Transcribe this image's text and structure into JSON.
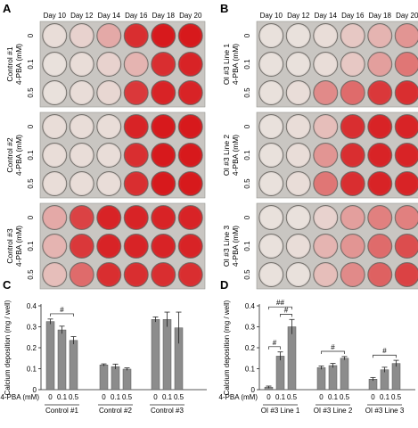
{
  "panels": {
    "A": {
      "letter": "A",
      "day_labels": [
        "Day 10",
        "Day 12",
        "Day 14",
        "Day 16",
        "Day 18",
        "Day 20"
      ],
      "groups": [
        {
          "label_line1": "Control #1",
          "label_line2": "4-PBA (mM)",
          "rows": [
            {
              "dose": "0",
              "stain": [
                0.05,
                0.1,
                0.3,
                0.9,
                1.0,
                1.0
              ]
            },
            {
              "dose": "0.1",
              "stain": [
                0.03,
                0.05,
                0.1,
                0.25,
                0.9,
                0.95
              ]
            },
            {
              "dose": "0.5",
              "stain": [
                0.03,
                0.05,
                0.08,
                0.85,
                0.95,
                0.95
              ]
            }
          ]
        },
        {
          "label_line1": "Control #2",
          "label_line2": "4-PBA (mM)",
          "rows": [
            {
              "dose": "0",
              "stain": [
                0.05,
                0.05,
                0.05,
                0.95,
                1.0,
                1.0
              ]
            },
            {
              "dose": "0.1",
              "stain": [
                0.05,
                0.05,
                0.05,
                0.9,
                1.0,
                1.0
              ]
            },
            {
              "dose": "0.5",
              "stain": [
                0.05,
                0.05,
                0.05,
                0.9,
                1.0,
                1.0
              ]
            }
          ]
        },
        {
          "label_line1": "Control #3",
          "label_line2": "4-PBA (mM)",
          "rows": [
            {
              "dose": "0",
              "stain": [
                0.3,
                0.8,
                0.95,
                0.95,
                0.95,
                0.95
              ]
            },
            {
              "dose": "0.1",
              "stain": [
                0.25,
                0.85,
                0.95,
                0.95,
                0.95,
                0.95
              ]
            },
            {
              "dose": "0.5",
              "stain": [
                0.2,
                0.6,
                0.9,
                0.9,
                0.9,
                0.9
              ]
            }
          ]
        }
      ]
    },
    "B": {
      "letter": "B",
      "day_labels": [
        "Day 10",
        "Day 12",
        "Day 14",
        "Day 16",
        "Day 18",
        "Day 20"
      ],
      "groups": [
        {
          "label_line1": "OI #3 Line 1",
          "label_line2": "4-PBA (mM)",
          "rows": [
            {
              "dose": "0",
              "stain": [
                0.03,
                0.03,
                0.05,
                0.15,
                0.25,
                0.4
              ]
            },
            {
              "dose": "0.1",
              "stain": [
                0.03,
                0.03,
                0.05,
                0.15,
                0.35,
                0.55
              ]
            },
            {
              "dose": "0.5",
              "stain": [
                0.03,
                0.05,
                0.45,
                0.6,
                0.85,
                0.9
              ]
            }
          ]
        },
        {
          "label_line1": "OI #3 Line 2",
          "label_line2": "4-PBA (mM)",
          "rows": [
            {
              "dose": "0",
              "stain": [
                0.03,
                0.05,
                0.2,
                0.9,
                0.95,
                0.95
              ]
            },
            {
              "dose": "0.1",
              "stain": [
                0.03,
                0.05,
                0.4,
                0.9,
                0.95,
                0.95
              ]
            },
            {
              "dose": "0.5",
              "stain": [
                0.03,
                0.05,
                0.55,
                0.9,
                0.95,
                0.95
              ]
            }
          ]
        },
        {
          "label_line1": "OI #3 Line 3",
          "label_line2": "4-PBA (mM)",
          "rows": [
            {
              "dose": "0",
              "stain": [
                0.03,
                0.03,
                0.1,
                0.35,
                0.5,
                0.5
              ]
            },
            {
              "dose": "0.1",
              "stain": [
                0.03,
                0.05,
                0.25,
                0.4,
                0.6,
                0.75
              ]
            },
            {
              "dose": "0.5",
              "stain": [
                0.03,
                0.03,
                0.2,
                0.45,
                0.65,
                0.8
              ]
            }
          ]
        }
      ]
    },
    "C": {
      "letter": "C"
    },
    "D": {
      "letter": "D"
    }
  },
  "colors": {
    "stain_red": "#d7191c",
    "bar_gray": "#8c8c8c",
    "axis": "#222222"
  },
  "chart_data": [
    {
      "panel": "C",
      "type": "bar",
      "ylabel": "Calcium deposition (mg / well)",
      "ylim": [
        0,
        0.4
      ],
      "yticks": [
        "0",
        "0.1",
        "0.2",
        "0.3",
        "0.4"
      ],
      "dose_axis_label": "4-PBA (mM)",
      "categories": [
        "0",
        "0.1",
        "0.5"
      ],
      "groups": [
        {
          "name": "Control #1",
          "values": [
            0.325,
            0.285,
            0.235
          ],
          "errors": [
            0.012,
            0.018,
            0.018
          ]
        },
        {
          "name": "Control #2",
          "values": [
            0.118,
            0.11,
            0.098
          ],
          "errors": [
            0.005,
            0.012,
            0.006
          ]
        },
        {
          "name": "Control #3",
          "values": [
            0.335,
            0.335,
            0.295
          ],
          "errors": [
            0.012,
            0.035,
            0.075
          ]
        }
      ],
      "annotations": [
        {
          "text": "#",
          "group": 0,
          "from": 0,
          "to": 2
        }
      ]
    },
    {
      "panel": "D",
      "type": "bar",
      "ylabel": "Calcium deposition (mg / well)",
      "ylim": [
        0,
        0.4
      ],
      "yticks": [
        "0",
        "0.1",
        "0.2",
        "0.3",
        "0.4"
      ],
      "dose_axis_label": "4-PBA (mM)",
      "categories": [
        "0",
        "0.1",
        "0.5"
      ],
      "groups": [
        {
          "name": "OI #3 Line 1",
          "values": [
            0.012,
            0.16,
            0.3
          ],
          "errors": [
            0.005,
            0.02,
            0.035
          ]
        },
        {
          "name": "OI #3 Line 2",
          "values": [
            0.105,
            0.115,
            0.15
          ],
          "errors": [
            0.008,
            0.01,
            0.008
          ]
        },
        {
          "name": "OI #3 Line 3",
          "values": [
            0.05,
            0.095,
            0.125
          ],
          "errors": [
            0.008,
            0.012,
            0.015
          ]
        }
      ],
      "annotations": [
        {
          "text": "#",
          "group": 0,
          "from": 0,
          "to": 1
        },
        {
          "text": "#",
          "group": 0,
          "from": 1,
          "to": 2
        },
        {
          "text": "##",
          "group": 0,
          "from": 0,
          "to": 2
        },
        {
          "text": "#",
          "group": 1,
          "from": 0,
          "to": 2
        },
        {
          "text": "#",
          "group": 2,
          "from": 0,
          "to": 2
        }
      ]
    }
  ]
}
